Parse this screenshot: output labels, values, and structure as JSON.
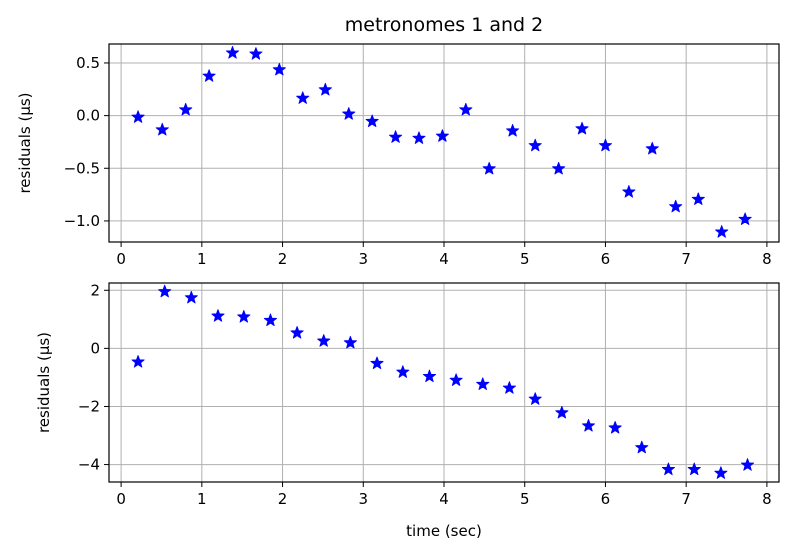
{
  "chart_data": [
    {
      "type": "scatter",
      "title": "metronomes 1 and 2",
      "xlabel": "",
      "ylabel": "residuals (μs)",
      "xlim": [
        -0.15,
        8.15
      ],
      "ylim": [
        -1.2,
        0.68
      ],
      "xticks": [
        0,
        1,
        2,
        3,
        4,
        5,
        6,
        7,
        8
      ],
      "xtick_labels": [
        "0",
        "1",
        "2",
        "3",
        "4",
        "5",
        "6",
        "7",
        "8"
      ],
      "yticks": [
        0.5,
        0.0,
        -0.5,
        -1.0
      ],
      "ytick_labels": [
        "0.5",
        "0.0",
        "−0.5",
        "−1.0"
      ],
      "grid": true,
      "marker": "star",
      "color": "#0000ff",
      "series": [
        {
          "x": [
            0.21,
            0.51,
            0.8,
            1.09,
            1.38,
            1.67,
            1.96,
            2.25,
            2.53,
            2.82,
            3.11,
            3.4,
            3.69,
            3.98,
            4.27,
            4.56,
            4.85,
            5.13,
            5.42,
            5.71,
            6.0,
            6.29,
            6.58,
            6.87,
            7.15,
            7.44,
            7.73
          ],
          "y": [
            -0.01,
            -0.13,
            0.06,
            0.38,
            0.6,
            0.59,
            0.44,
            0.17,
            0.25,
            0.02,
            -0.05,
            -0.2,
            -0.21,
            -0.19,
            0.06,
            -0.5,
            -0.14,
            -0.28,
            -0.5,
            -0.12,
            -0.28,
            -0.72,
            -0.31,
            -0.86,
            -0.79,
            -1.1,
            -0.98
          ]
        }
      ]
    },
    {
      "type": "scatter",
      "title": "",
      "xlabel": "time (sec)",
      "ylabel": "residuals (μs)",
      "xlim": [
        -0.15,
        8.15
      ],
      "ylim": [
        -4.6,
        2.25
      ],
      "xticks": [
        0,
        1,
        2,
        3,
        4,
        5,
        6,
        7,
        8
      ],
      "xtick_labels": [
        "0",
        "1",
        "2",
        "3",
        "4",
        "5",
        "6",
        "7",
        "8"
      ],
      "yticks": [
        2,
        0,
        -2,
        -4
      ],
      "ytick_labels": [
        "2",
        "0",
        "−2",
        "−4"
      ],
      "grid": true,
      "marker": "star",
      "color": "#0000ff",
      "series": [
        {
          "x": [
            0.21,
            0.54,
            0.87,
            1.2,
            1.52,
            1.85,
            2.18,
            2.51,
            2.84,
            3.17,
            3.49,
            3.82,
            4.15,
            4.48,
            4.81,
            5.13,
            5.46,
            5.79,
            6.12,
            6.45,
            6.78,
            7.1,
            7.43,
            7.76
          ],
          "y": [
            -0.45,
            1.97,
            1.76,
            1.13,
            1.1,
            0.98,
            0.55,
            0.27,
            0.21,
            -0.5,
            -0.8,
            -0.95,
            -1.08,
            -1.22,
            -1.35,
            -1.73,
            -2.2,
            -2.65,
            -2.72,
            -3.4,
            -4.15,
            -4.15,
            -4.28,
            -4.0
          ]
        }
      ]
    }
  ]
}
